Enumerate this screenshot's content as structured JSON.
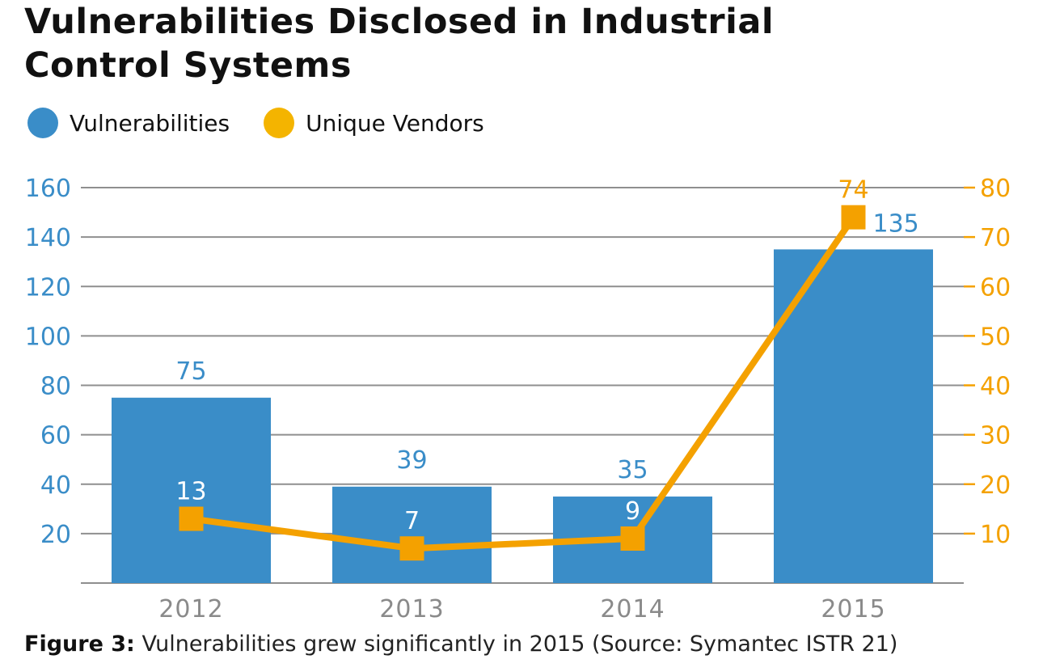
{
  "title_line1": "Vulnerabilities Disclosed in Industrial",
  "title_line2": "Control Systems",
  "legend": [
    {
      "label": "Vulnerabilities",
      "color": "#3a8dc8"
    },
    {
      "label": "Unique Vendors",
      "color": "#f4b400"
    }
  ],
  "caption": {
    "label": "Figure 3:",
    "text": "Vulnerabilities grew significantly in 2015 (Source: Symantec ISTR 21)"
  },
  "chart_data": {
    "type": "bar",
    "title": "Vulnerabilities Disclosed in Industrial Control Systems",
    "categories": [
      "2012",
      "2013",
      "2014",
      "2015"
    ],
    "series": [
      {
        "name": "Vulnerabilities",
        "type": "bar",
        "axis": "left",
        "color": "#3a8dc8",
        "values": [
          75,
          39,
          35,
          135
        ]
      },
      {
        "name": "Unique Vendors",
        "type": "line",
        "axis": "right",
        "color": "#f4a100",
        "values": [
          13,
          7,
          9,
          74
        ]
      }
    ],
    "y_left": {
      "min": 0,
      "max": 160,
      "ticks": [
        20,
        40,
        60,
        80,
        100,
        120,
        140,
        160
      ],
      "color": "#3a8dc8"
    },
    "y_right": {
      "min": 0,
      "max": 80,
      "ticks": [
        10,
        20,
        30,
        40,
        50,
        60,
        70,
        80
      ],
      "color": "#f4a100"
    },
    "grid": true,
    "legend_position": "top-left"
  }
}
